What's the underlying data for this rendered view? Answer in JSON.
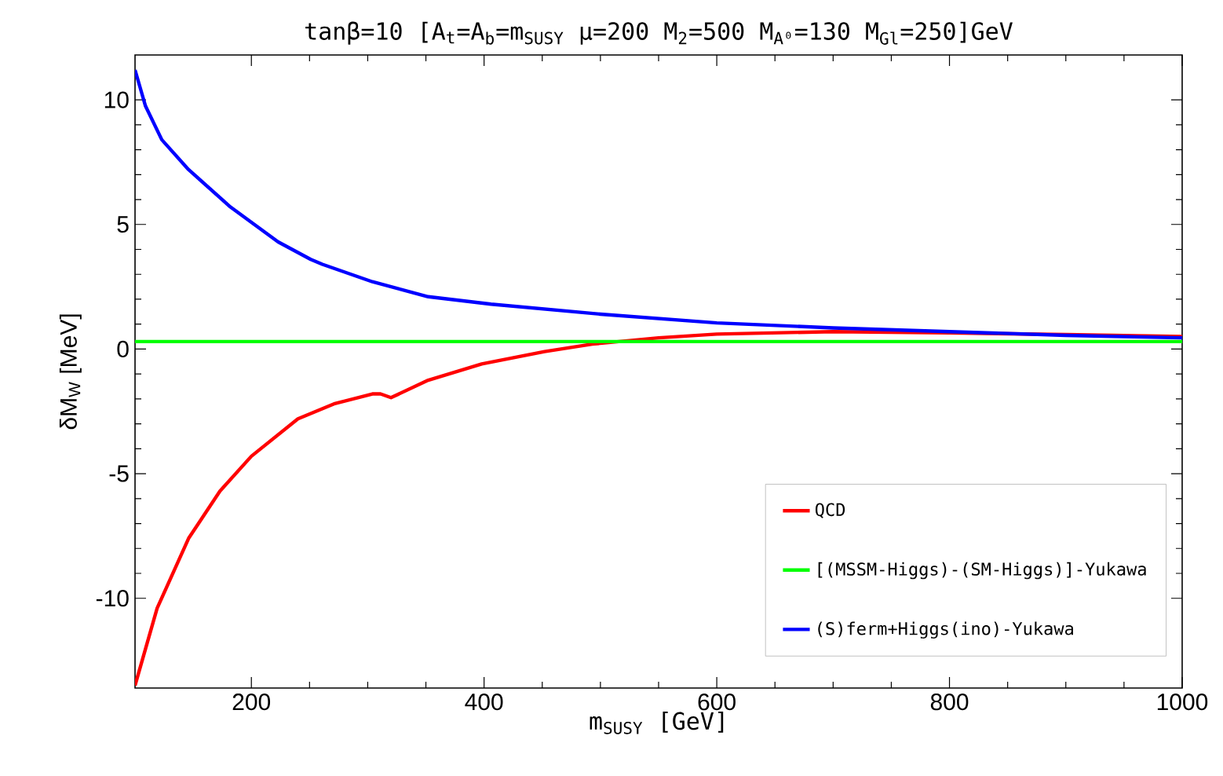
{
  "chart_data": {
    "type": "line",
    "title": "tanβ=10  [A$_{t}$=A$_{b}$=m$_{SUSY}$  μ=200  M$_{2}$=500  M$_{A⁰}$=130  M$_{Gl}$=250]GeV",
    "xlabel": "m$_{SUSY}$ [GeV]",
    "ylabel": "δM$_{W}$ [MeV]",
    "xlim": [
      100,
      1000
    ],
    "ylim": [
      -13.6,
      11.8
    ],
    "xticks": [
      200,
      400,
      600,
      800,
      1000
    ],
    "yticks": [
      -10,
      -5,
      0,
      5,
      10
    ],
    "grid": false,
    "legend": "bottom right",
    "marker": "none",
    "line_style": "solid",
    "series": [
      {
        "name": "QCD",
        "color": "#ff0000",
        "x": [
          100,
          119,
          146,
          173,
          200,
          240,
          271,
          304,
          311,
          320,
          352,
          398,
          452,
          493,
          550,
          600,
          700,
          800,
          900,
          1000
        ],
        "values": [
          -13.5,
          -10.4,
          -7.6,
          -5.7,
          -4.3,
          -2.8,
          -2.2,
          -1.8,
          -1.8,
          -1.95,
          -1.25,
          -0.6,
          -0.1,
          0.2,
          0.45,
          0.6,
          0.7,
          0.65,
          0.58,
          0.5
        ]
      },
      {
        "name": "[(MSSM-Higgs)-(SM-Higgs)]-Yukawa",
        "color": "#00ff00",
        "x": [
          100,
          1000
        ],
        "values": [
          0.3,
          0.3
        ]
      },
      {
        "name": "(S)ferm+Higgs(ino)-Yukawa",
        "color": "#0000ff",
        "x": [
          100,
          109,
          123,
          146,
          182,
          223,
          251,
          261,
          304,
          352,
          406,
          500,
          600,
          700,
          800,
          900,
          1000
        ],
        "values": [
          11.2,
          9.75,
          8.4,
          7.2,
          5.7,
          4.3,
          3.6,
          3.4,
          2.7,
          2.1,
          1.8,
          1.4,
          1.05,
          0.85,
          0.7,
          0.55,
          0.45
        ]
      }
    ]
  }
}
